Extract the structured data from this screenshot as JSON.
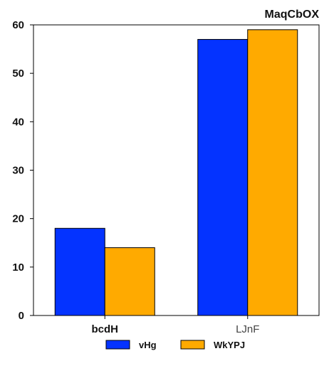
{
  "chart_data": {
    "type": "bar",
    "title": "MaqCbOX",
    "xlabel": "",
    "ylabel": "",
    "categories": [
      "bcdH",
      "LJnF"
    ],
    "series": [
      {
        "name": "vHg",
        "values": [
          18,
          57
        ],
        "color": "#0433ff"
      },
      {
        "name": "WkYPJ",
        "values": [
          14,
          59
        ],
        "color": "#ffaa00"
      }
    ],
    "ylim": [
      0,
      60
    ],
    "yticks": [
      0,
      10,
      20,
      30,
      40,
      50,
      60
    ],
    "grid": false,
    "legend_position": "bottom-center"
  }
}
